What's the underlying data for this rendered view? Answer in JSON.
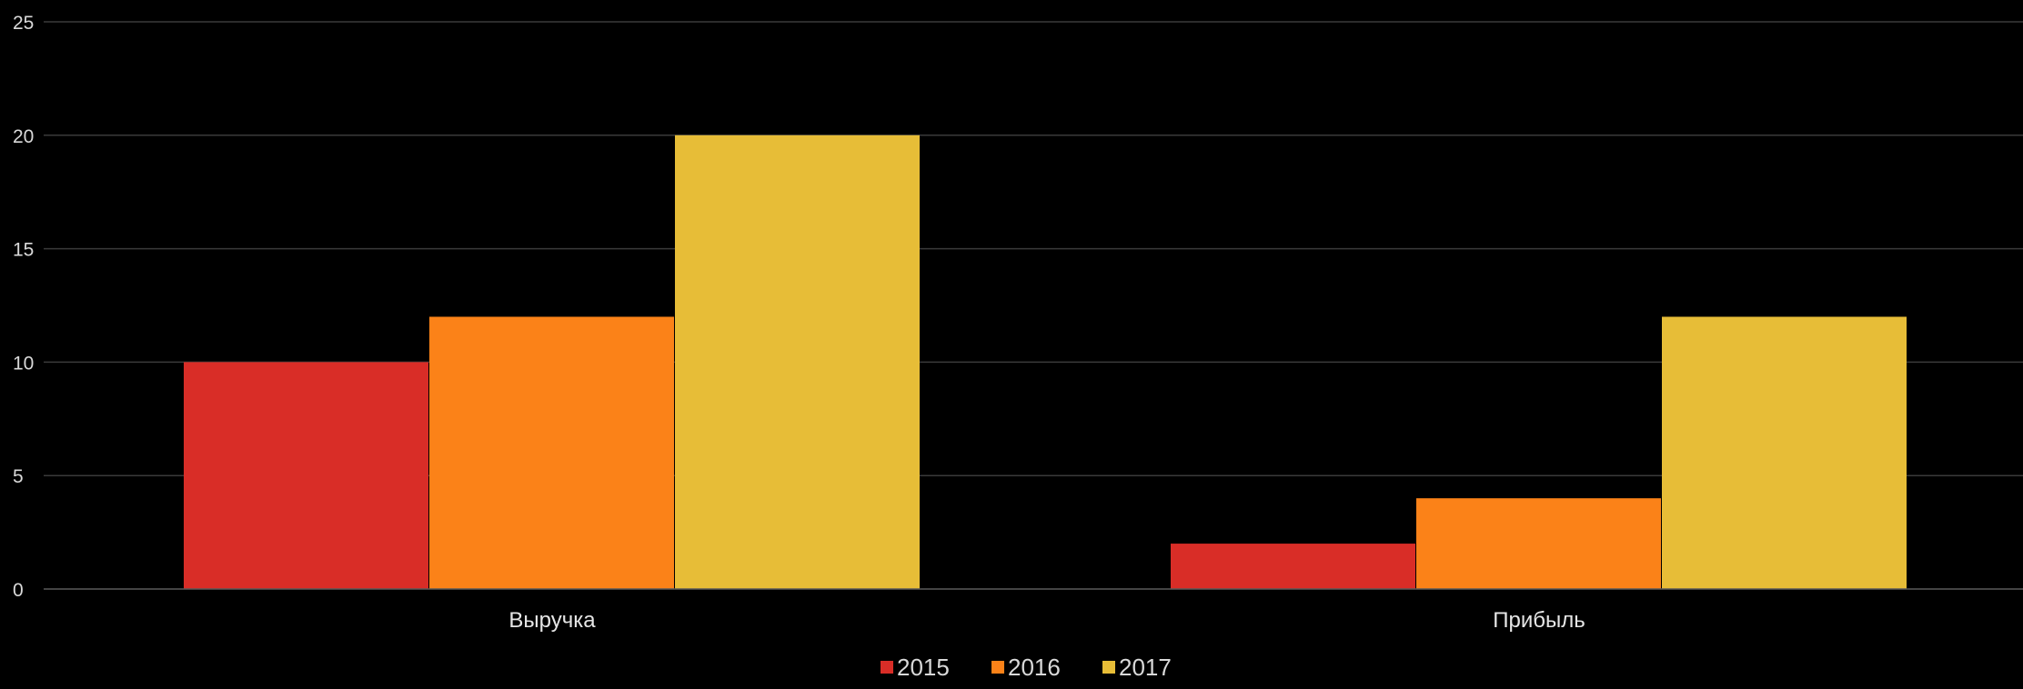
{
  "chart_data": {
    "type": "bar",
    "title": "",
    "xlabel": "",
    "ylabel": "",
    "categories": [
      "Выручка",
      "Прибыль"
    ],
    "series": [
      {
        "name": "2015",
        "color": "#d92d27",
        "values": [
          10,
          2
        ]
      },
      {
        "name": "2016",
        "color": "#fb8218",
        "values": [
          12,
          4
        ]
      },
      {
        "name": "2017",
        "color": "#e7bd37",
        "values": [
          20,
          12
        ]
      }
    ],
    "ylim": [
      0,
      25
    ],
    "yticks": [
      "0",
      "5",
      "10",
      "15",
      "20",
      "25"
    ],
    "grid": true,
    "legend": "bottom-center",
    "background": "#000000"
  }
}
